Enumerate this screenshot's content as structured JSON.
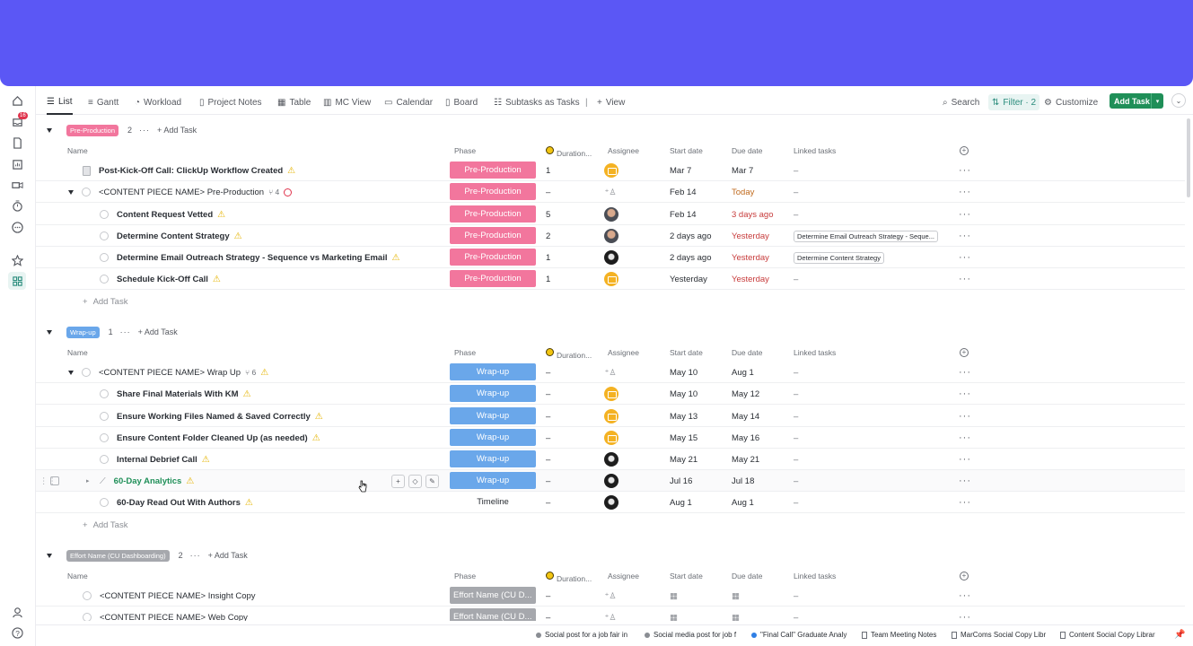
{
  "views": {
    "list": "List",
    "gantt": "Gantt",
    "workload": "Workload",
    "notes": "Project Notes",
    "table": "Table",
    "mc": "MC View",
    "calendar": "Calendar",
    "board": "Board",
    "subtasks": "Subtasks as Tasks",
    "add_view": "View",
    "search": "Search",
    "filter": "Filter · 2",
    "customize": "Customize",
    "add_task": "Add Task"
  },
  "rail": {
    "badge": "16"
  },
  "columns": {
    "name": "Name",
    "phase": "Phase",
    "duration": "Duration...",
    "assignee": "Assignee",
    "start": "Start date",
    "due": "Due date",
    "linked": "Linked tasks"
  },
  "groups": [
    {
      "label": "Pre-Production",
      "count": "2",
      "add": "Add Task",
      "color": "#f2769d",
      "rows": [
        {
          "name": "Post-Kick-Off Call: ClickUp Workflow Created",
          "phase": "Pre-Production",
          "dur": "1",
          "start": "Mar 7",
          "due": "Mar 7",
          "linked": "–"
        },
        {
          "name": "<CONTENT PIECE NAME> Pre-Production",
          "sub": "4",
          "phase": "Pre-Production",
          "dur": "–",
          "start": "Feb 14",
          "due": "Today",
          "linked": "–"
        },
        {
          "name": "Content Request Vetted",
          "phase": "Pre-Production",
          "dur": "5",
          "start": "Feb 14",
          "due": "3 days ago",
          "linked": "–"
        },
        {
          "name": "Determine Content Strategy",
          "phase": "Pre-Production",
          "dur": "2",
          "start": "2 days ago",
          "due": "Yesterday",
          "linked": "Determine Email Outreach Strategy - Seque..."
        },
        {
          "name": "Determine Email Outreach Strategy - Sequence vs Marketing Email",
          "phase": "Pre-Production",
          "dur": "1",
          "start": "2 days ago",
          "due": "Yesterday",
          "linked": "Determine Content Strategy"
        },
        {
          "name": "Schedule Kick-Off Call",
          "phase": "Pre-Production",
          "dur": "1",
          "start": "Yesterday",
          "due": "Yesterday",
          "linked": "–"
        }
      ],
      "add_row": "Add Task"
    },
    {
      "label": "Wrap-up",
      "count": "1",
      "add": "Add Task",
      "color": "#6aa7ea",
      "rows": [
        {
          "name": "<CONTENT PIECE NAME> Wrap Up",
          "sub": "6",
          "phase": "Wrap-up",
          "dur": "–",
          "start": "May 10",
          "due": "Aug 1",
          "linked": "–"
        },
        {
          "name": "Share Final Materials With KM",
          "phase": "Wrap-up",
          "dur": "–",
          "start": "May 10",
          "due": "May 12",
          "linked": "–"
        },
        {
          "name": "Ensure Working Files Named & Saved Correctly",
          "phase": "Wrap-up",
          "dur": "–",
          "start": "May 13",
          "due": "May 14",
          "linked": "–"
        },
        {
          "name": "Ensure Content Folder Cleaned Up (as needed)",
          "phase": "Wrap-up",
          "dur": "–",
          "start": "May 15",
          "due": "May 16",
          "linked": "–"
        },
        {
          "name": "Internal Debrief Call",
          "phase": "Wrap-up",
          "dur": "–",
          "start": "May 21",
          "due": "May 21",
          "linked": "–"
        },
        {
          "name": "60-Day Analytics",
          "phase": "Wrap-up",
          "dur": "–",
          "start": "Jul 16",
          "due": "Jul 18",
          "linked": "–"
        },
        {
          "name": "60-Day Read Out With Authors",
          "phase": "Timeline",
          "dur": "–",
          "start": "Aug 1",
          "due": "Aug 1",
          "linked": "–"
        }
      ],
      "add_row": "Add Task"
    },
    {
      "label": "Effort Name (CU Dashboarding)",
      "count": "2",
      "add": "Add Task",
      "color": "#a6a8ad",
      "rows": [
        {
          "name": "<CONTENT PIECE NAME> Insight Copy",
          "phase": "Effort Name (CU D...",
          "dur": "–",
          "linked": "–"
        },
        {
          "name": "<CONTENT PIECE NAME> Web Copy",
          "phase": "Effort Name (CU D...",
          "dur": "–",
          "linked": "–"
        }
      ]
    }
  ],
  "tray": [
    "Social post for a job fair in",
    "Social media post for job f",
    "\"Final Call\" Graduate Analy",
    "Team Meeting Notes",
    "MarComs Social Copy Libr",
    "Content Social Copy Librar"
  ]
}
